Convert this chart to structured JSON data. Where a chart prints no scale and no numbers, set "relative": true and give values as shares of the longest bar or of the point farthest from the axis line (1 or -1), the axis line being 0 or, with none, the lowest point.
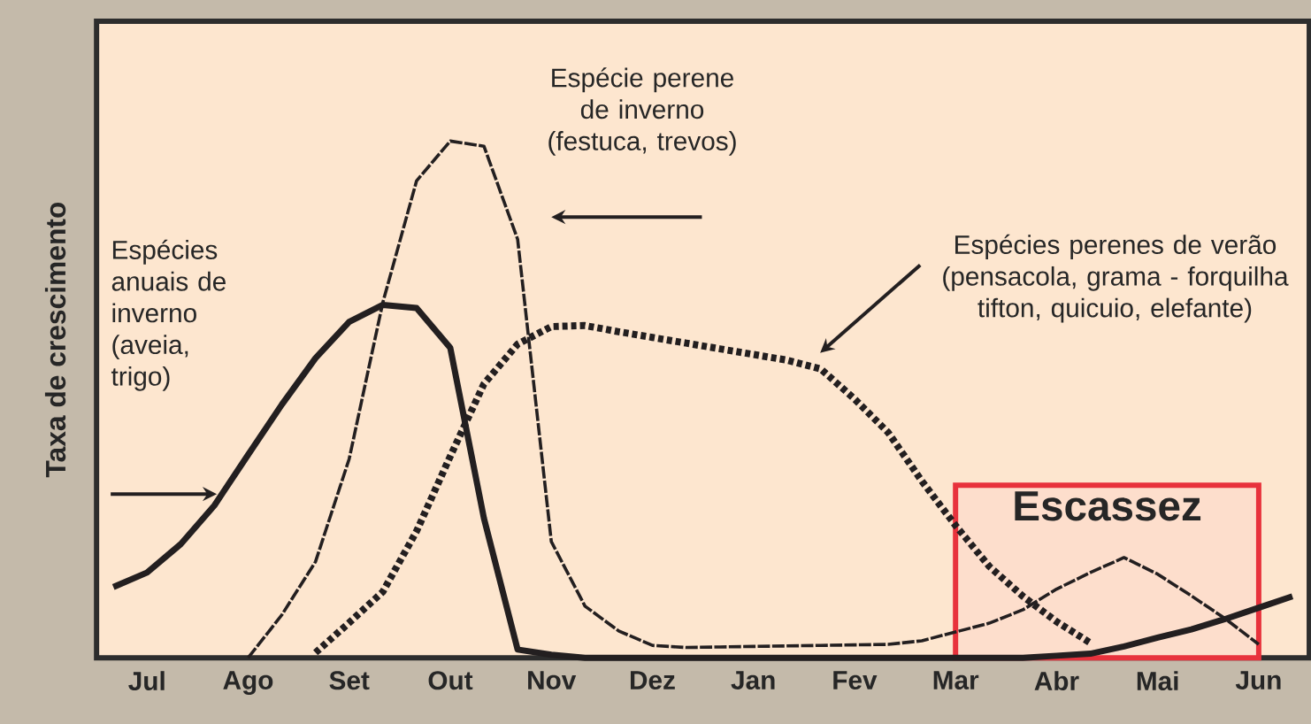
{
  "chart_data": {
    "type": "line",
    "relative": true,
    "ylabel": "Taxa de crescimento",
    "categories": [
      null,
      "Jul",
      null,
      null,
      "Ago",
      null,
      null,
      "Set",
      null,
      null,
      "Out",
      null,
      null,
      "Nov",
      null,
      null,
      "Dez",
      null,
      null,
      "Jan",
      null,
      null,
      "Fev",
      null,
      null,
      "Mar",
      null,
      null,
      "Abr",
      null,
      null,
      "Mai",
      null,
      null,
      "Jun",
      null
    ],
    "series": [
      {
        "name": "Espécies anuais de inverno (aveia, trigo)",
        "color": "#231f20",
        "line_style": "solid",
        "values": [
          0.137,
          0.165,
          0.22,
          0.295,
          0.393,
          0.49,
          0.58,
          0.65,
          0.683,
          0.677,
          0.6,
          0.27,
          0.016,
          0.006,
          0,
          0,
          0,
          0,
          0,
          0,
          0,
          0,
          0,
          0,
          0,
          0,
          0,
          0,
          0.004,
          0.008,
          0.022,
          0.039,
          0.055,
          0.075,
          0.097,
          0.119
        ]
      },
      {
        "name": "Espécie perene de inverno (festuca, trevos)",
        "color": "#231f20",
        "line_style": "dashed",
        "values": [
          null,
          null,
          null,
          null,
          0,
          0.083,
          0.186,
          0.385,
          0.688,
          0.923,
          1,
          0.99,
          0.81,
          0.225,
          0.1,
          0.052,
          0.024,
          0.02,
          0.021,
          0.022,
          0.023,
          0.024,
          0.025,
          0.026,
          0.033,
          0.05,
          0.067,
          0.093,
          0.133,
          0.165,
          0.194,
          0.162,
          0.12,
          0.076,
          0.026,
          null
        ]
      },
      {
        "name": "Espécies perenes de verão (pensacola, grama - forquilha tifton, quicuio, elefante)",
        "color": "#231f20",
        "line_style": "dotted",
        "values": [
          null,
          null,
          null,
          null,
          null,
          null,
          0.01,
          0.068,
          0.128,
          0.245,
          0.39,
          0.53,
          0.607,
          0.641,
          0.643,
          0.631,
          0.62,
          0.609,
          0.598,
          0.587,
          0.576,
          0.559,
          0.501,
          0.436,
          0.342,
          0.256,
          0.177,
          0.119,
          0.07,
          0.029,
          null,
          null,
          null,
          null,
          null,
          null
        ]
      }
    ],
    "bands": [
      {
        "axis": "x",
        "from": "Mar",
        "to": "Jun",
        "label": "Escassez",
        "color": "#e8323c"
      }
    ]
  }
}
